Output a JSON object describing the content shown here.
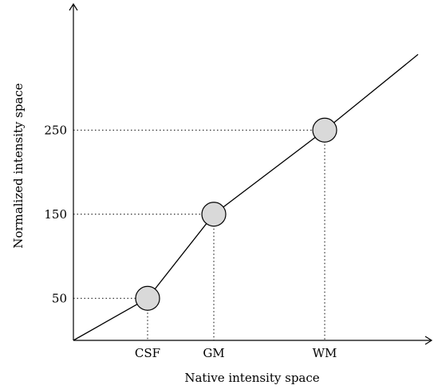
{
  "chart_data": {
    "type": "line",
    "title": "",
    "xlabel": "Native intensity space",
    "ylabel": "Normalized intensity space",
    "x_ticks": [
      "CSF",
      "GM",
      "WM"
    ],
    "y_ticks": [
      50,
      150,
      250
    ],
    "series": [
      {
        "points": [
          {
            "x": "origin",
            "y": 0
          },
          {
            "x": "CSF",
            "y": 50
          },
          {
            "x": "GM",
            "y": 150
          },
          {
            "x": "WM",
            "y": 250
          },
          {
            "x": "end",
            "y": 340
          }
        ]
      }
    ],
    "markers": [
      {
        "x": "CSF",
        "y": 50
      },
      {
        "x": "GM",
        "y": 150
      },
      {
        "x": "WM",
        "y": 250
      }
    ],
    "ylim": [
      0,
      400
    ],
    "grid": false,
    "guide_lines": "dotted",
    "colors": {
      "line": "#000000",
      "marker_fill": "#d9d9d9",
      "marker_stroke": "#000000"
    }
  }
}
